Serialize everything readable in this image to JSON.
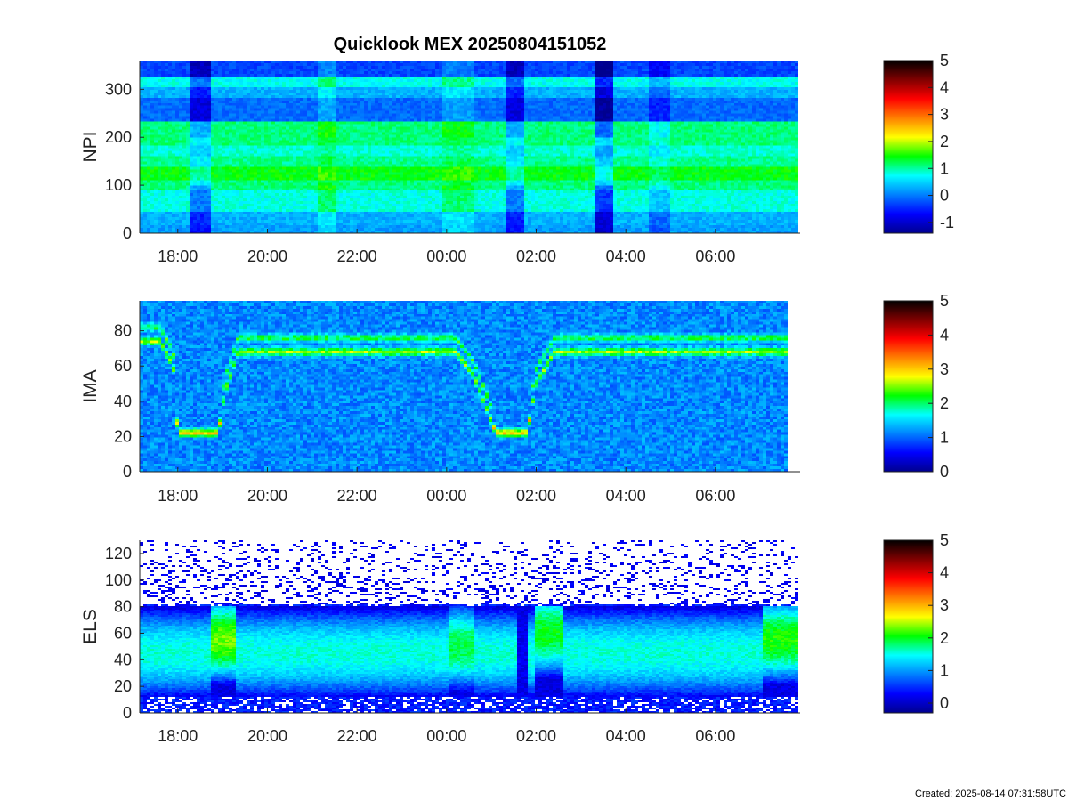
{
  "figure": {
    "title": "Quicklook MEX 20250804151052",
    "created": "Created: 2025-08-14 07:31:58UTC"
  },
  "colormap": [
    "#00008f",
    "#0000ff",
    "#0080ff",
    "#00ffff",
    "#00ff00",
    "#ffff00",
    "#ff8000",
    "#ff0000",
    "#800000",
    "#000000"
  ],
  "chart_data": [
    {
      "type": "heatmap",
      "title": "Quicklook MEX 20250804151052",
      "ylabel": "NPI",
      "xlabel": "",
      "x_tick_labels": [
        "18:00",
        "20:00",
        "22:00",
        "00:00",
        "02:00",
        "04:00",
        "06:00"
      ],
      "x_tick_hours": [
        18,
        20,
        22,
        24,
        26,
        28,
        30
      ],
      "x_range_hours": [
        17.15,
        31.85
      ],
      "ylim": [
        0,
        360
      ],
      "y_ticks": [
        0,
        100,
        200,
        300
      ],
      "colorbar": {
        "range": [
          -1.4,
          5
        ],
        "ticks": [
          -1,
          0,
          1,
          2,
          3,
          4,
          5
        ]
      },
      "bands": [
        {
          "y": [
            0,
            15
          ],
          "level": 0.2
        },
        {
          "y": [
            15,
            45
          ],
          "level": 0.3
        },
        {
          "y": [
            45,
            90
          ],
          "level": 0.8
        },
        {
          "y": [
            90,
            110
          ],
          "level": 1.1
        },
        {
          "y": [
            110,
            140
          ],
          "level": 1.4
        },
        {
          "y": [
            140,
            160
          ],
          "level": 1.05
        },
        {
          "y": [
            160,
            185
          ],
          "level": 0.85
        },
        {
          "y": [
            185,
            230
          ],
          "level": 1.1
        },
        {
          "y": [
            230,
            280
          ],
          "level": -0.1
        },
        {
          "y": [
            280,
            305
          ],
          "level": 0.3
        },
        {
          "y": [
            305,
            325
          ],
          "level": 0.75
        },
        {
          "y": [
            325,
            360
          ],
          "level": -0.3
        }
      ],
      "time_features": [
        {
          "t": [
            18.3,
            18.7
          ],
          "delta": -0.8
        },
        {
          "t": [
            21.1,
            21.5
          ],
          "delta": 0.35
        },
        {
          "t": [
            23.9,
            24.6
          ],
          "delta": 0.3
        },
        {
          "t": [
            25.3,
            25.7
          ],
          "delta": -0.8
        },
        {
          "t": [
            27.35,
            27.75
          ],
          "delta": -1.2
        },
        {
          "t": [
            28.5,
            28.95
          ],
          "delta": -0.4
        }
      ]
    },
    {
      "type": "heatmap",
      "ylabel": "IMA",
      "xlabel": "",
      "x_tick_labels": [
        "18:00",
        "20:00",
        "22:00",
        "00:00",
        "02:00",
        "04:00",
        "06:00"
      ],
      "x_tick_hours": [
        18,
        20,
        22,
        24,
        26,
        28,
        30
      ],
      "x_range_hours": [
        17.15,
        31.85
      ],
      "data_t_end": 31.65,
      "ylim": [
        0,
        97
      ],
      "y_ticks": [
        0,
        20,
        40,
        60,
        80
      ],
      "colorbar": {
        "range": [
          0,
          5
        ],
        "ticks": [
          0,
          1,
          2,
          3,
          4,
          5
        ]
      },
      "background_level": 1.15,
      "ridge": [
        {
          "t": 17.15,
          "y": 74
        },
        {
          "t": 17.6,
          "y": 74
        },
        {
          "t": 17.9,
          "y": 60
        },
        {
          "t": 18.0,
          "y": 22
        },
        {
          "t": 18.9,
          "y": 22
        },
        {
          "t": 19.05,
          "y": 45
        },
        {
          "t": 19.35,
          "y": 68
        },
        {
          "t": 24.2,
          "y": 68
        },
        {
          "t": 24.6,
          "y": 55
        },
        {
          "t": 25.1,
          "y": 22
        },
        {
          "t": 25.8,
          "y": 22
        },
        {
          "t": 26.0,
          "y": 50
        },
        {
          "t": 26.4,
          "y": 68
        },
        {
          "t": 31.65,
          "y": 68
        }
      ],
      "ridge_level": 2.6,
      "ridge_upper_offset": 8,
      "low_ridge_level": 3.1
    },
    {
      "type": "heatmap",
      "ylabel": "ELS",
      "xlabel": "",
      "x_tick_labels": [
        "18:00",
        "20:00",
        "22:00",
        "00:00",
        "02:00",
        "04:00",
        "06:00"
      ],
      "x_tick_hours": [
        18,
        20,
        22,
        24,
        26,
        28,
        30
      ],
      "x_range_hours": [
        17.15,
        31.85
      ],
      "ylim": [
        0,
        130
      ],
      "y_ticks": [
        0,
        20,
        40,
        60,
        80,
        100,
        120
      ],
      "colorbar": {
        "range": [
          -0.3,
          5
        ],
        "ticks": [
          0,
          1,
          2,
          3,
          4,
          5
        ]
      },
      "core": {
        "y": [
          12,
          80
        ],
        "center": 45,
        "peak_level": 1.55
      },
      "sparse_above": 82,
      "features": [
        {
          "t": [
            18.7,
            19.3
          ],
          "center": 55,
          "peak_level": 2.3
        },
        {
          "t": [
            24.1,
            24.6
          ],
          "center": 50,
          "peak_level": 1.9
        },
        {
          "t": [
            25.55,
            25.8
          ],
          "center": 40,
          "peak_level": 0.2
        },
        {
          "t": [
            26.0,
            26.6
          ],
          "center": 60,
          "peak_level": 2.0
        },
        {
          "t": [
            31.05,
            31.85
          ],
          "center": 55,
          "peak_level": 2.1
        }
      ]
    }
  ]
}
